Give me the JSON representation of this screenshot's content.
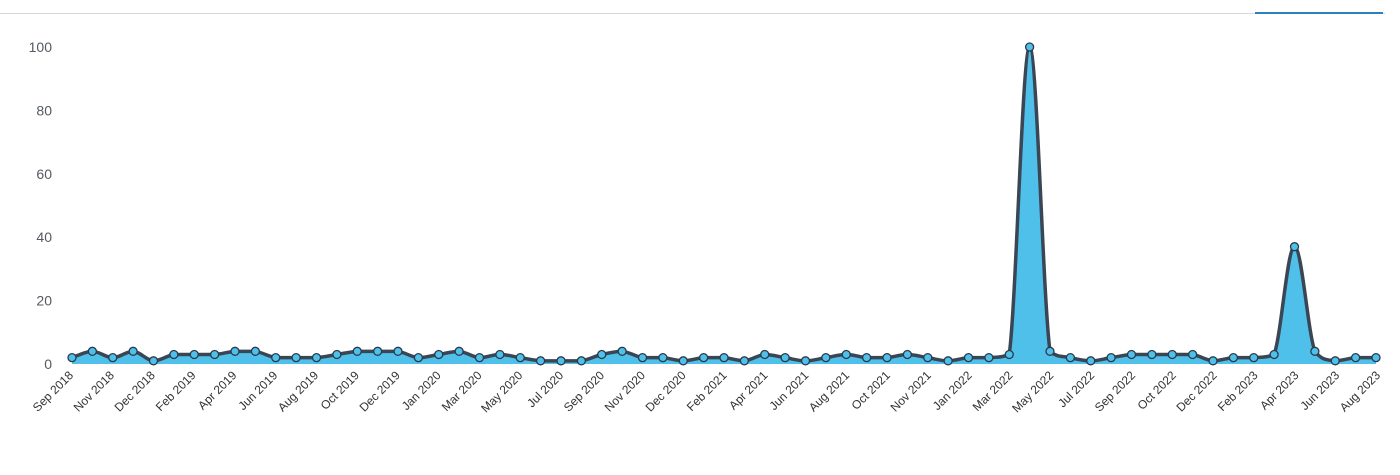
{
  "chart_data": {
    "type": "area",
    "title": "",
    "xlabel": "",
    "ylabel": "",
    "ylim": [
      0,
      100
    ],
    "yticks": [
      0,
      20,
      40,
      60,
      80,
      100
    ],
    "grid": false,
    "legend": "none",
    "colors": {
      "fill": "#4fc0ea",
      "line": "#3a4654",
      "marker": "#4fc0ea",
      "marker_stroke": "#2a3a4a"
    },
    "x_tick_labels": [
      "Sep 2018",
      "Nov 2018",
      "Dec 2018",
      "Feb 2019",
      "Apr 2019",
      "Jun 2019",
      "Aug 2019",
      "Oct 2019",
      "Dec 2019",
      "Jan 2020",
      "Mar 2020",
      "May 2020",
      "Jul 2020",
      "Sep 2020",
      "Nov 2020",
      "Dec 2020",
      "Feb 2021",
      "Apr 2021",
      "Jun 2021",
      "Aug 2021",
      "Oct 2021",
      "Nov 2021",
      "Jan 2022",
      "Mar 2022",
      "May 2022",
      "Jul 2022",
      "Sep 2022",
      "Oct 2022",
      "Dec 2022",
      "Feb 2023",
      "Apr 2023",
      "Jun 2023",
      "Aug 2023"
    ],
    "series": [
      {
        "values": [
          2,
          4,
          2,
          4,
          1,
          3,
          3,
          3,
          4,
          4,
          2,
          2,
          2,
          3,
          4,
          4,
          4,
          2,
          3,
          4,
          2,
          3,
          2,
          1,
          1,
          1,
          3,
          4,
          2,
          2,
          1,
          2,
          2,
          1,
          3,
          2,
          1,
          2,
          3,
          2,
          2,
          3,
          2,
          1,
          2,
          2,
          3,
          100,
          4,
          2,
          1,
          2,
          3,
          3,
          3,
          3,
          1,
          2,
          2,
          3,
          37,
          4,
          1,
          2,
          2
        ]
      }
    ]
  },
  "ui": {
    "tab_indicator_color": "#2f7fb8"
  }
}
